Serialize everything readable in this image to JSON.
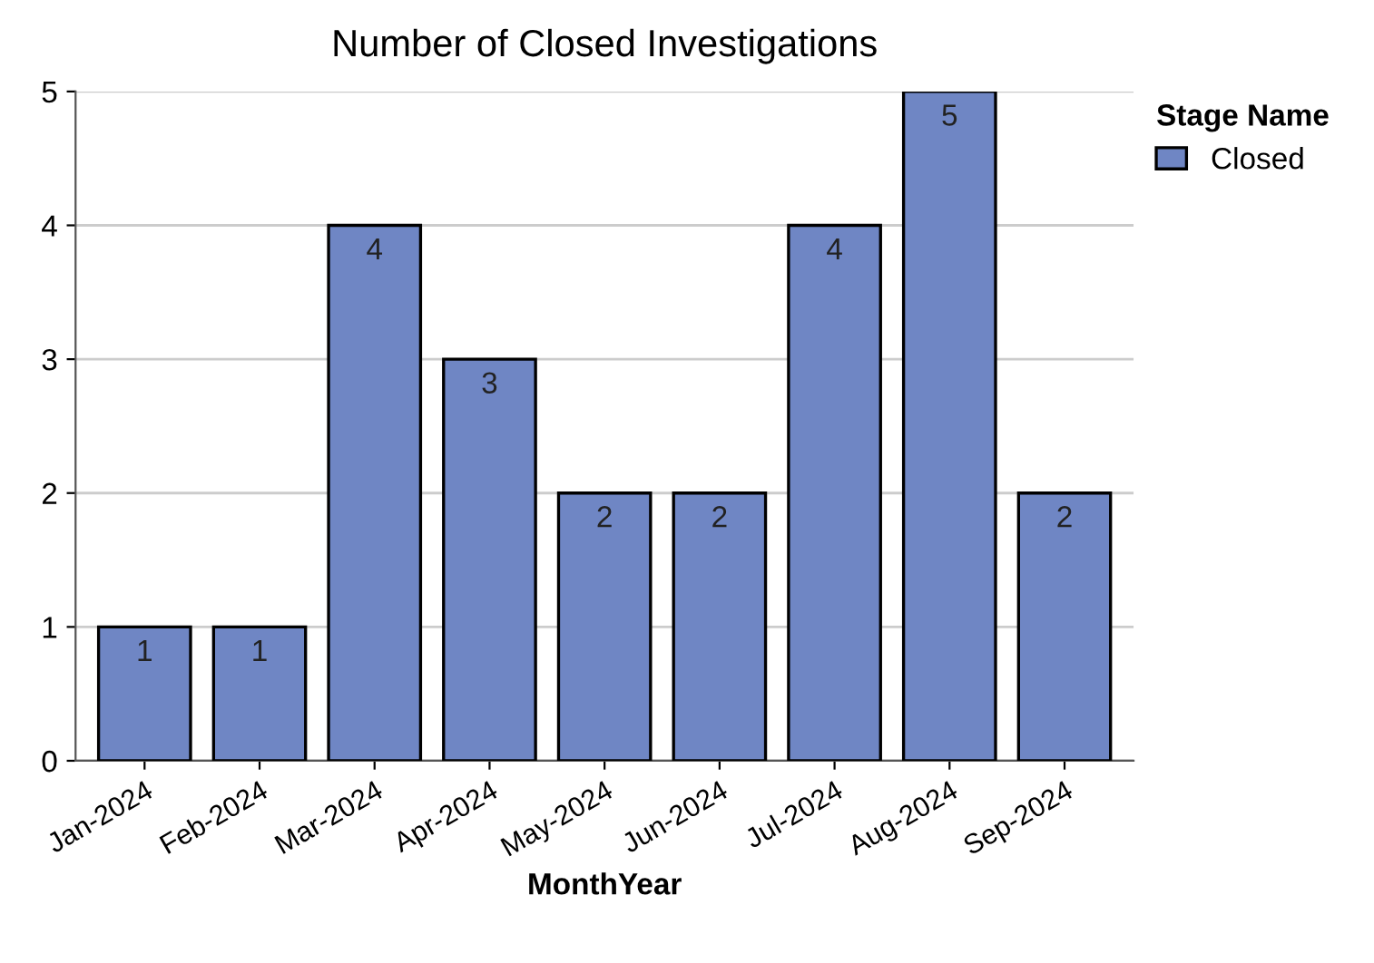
{
  "chart_data": {
    "type": "bar",
    "title": "Number of Closed Investigations",
    "xlabel": "MonthYear",
    "legend_title": "Stage Name",
    "categories": [
      "Jan-2024",
      "Feb-2024",
      "Mar-2024",
      "Apr-2024",
      "May-2024",
      "Jun-2024",
      "Jul-2024",
      "Aug-2024",
      "Sep-2024"
    ],
    "series": [
      {
        "name": "Closed",
        "color": "#6f86c4",
        "values": [
          1,
          1,
          4,
          3,
          2,
          2,
          4,
          5,
          2
        ]
      }
    ],
    "ylim": [
      0,
      5
    ],
    "yticks": [
      0,
      1,
      2,
      3,
      4,
      5
    ],
    "grid": "y",
    "legend": "top right",
    "data_labels": true
  }
}
